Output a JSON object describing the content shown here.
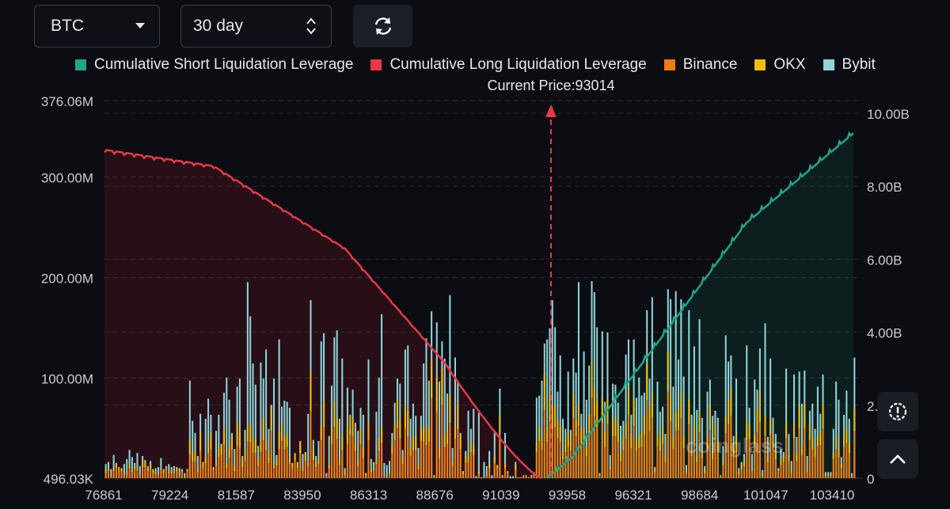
{
  "controls": {
    "coin": "BTC",
    "range": "30 day",
    "refresh_icon": "refresh-icon"
  },
  "legend": [
    {
      "label": "Cumulative Short Liquidation Leverage",
      "color": "#1fa58a"
    },
    {
      "label": "Cumulative Long Liquidation Leverage",
      "color": "#e8384a"
    },
    {
      "label": "Binance",
      "color": "#f07b0c"
    },
    {
      "label": "OKX",
      "color": "#f3bd0b"
    },
    {
      "label": "Bybit",
      "color": "#8ed4d8"
    }
  ],
  "current_price_label": "Current Price:93014",
  "watermark": "coinglass",
  "chart_data": {
    "type": "bar",
    "title": "",
    "current_price": 93014,
    "x_tick_labels": [
      "76861",
      "79224",
      "81587",
      "83950",
      "86313",
      "88676",
      "91039",
      "93958",
      "96321",
      "98684",
      "101047",
      "103410"
    ],
    "x_range": [
      76861,
      104650
    ],
    "left_axis": {
      "labels": [
        "376.06M",
        "300.00M",
        "200.00M",
        "100.00M",
        "496.03K"
      ],
      "values": [
        376.06,
        300,
        200,
        100,
        0.496
      ],
      "ylim": [
        0.496,
        376.06
      ],
      "unit": "M"
    },
    "right_axis": {
      "labels": [
        "10.00B",
        "8.00B",
        "6.00B",
        "4.00B",
        "2.00B",
        "0"
      ],
      "values": [
        10,
        8,
        6,
        4,
        2,
        0
      ],
      "ylim": [
        0,
        10
      ],
      "unit": "B"
    },
    "bar_series": [
      {
        "name": "Bybit",
        "values": [
          14,
          16,
          9,
          23,
          15,
          8,
          9,
          14,
          19,
          28,
          21,
          15,
          25,
          12,
          22,
          18,
          12,
          17,
          9,
          10,
          11,
          20,
          9,
          9,
          14,
          11,
          12,
          10,
          10,
          8,
          5,
          9,
          97,
          57,
          45,
          22,
          64,
          15,
          59,
          79,
          63,
          9,
          47,
          63,
          34,
          85,
          100,
          78,
          45,
          29,
          91,
          99,
          22,
          48,
          195,
          161,
          114,
          93,
          32,
          115,
          99,
          128,
          49,
          73,
          99,
          23,
          138,
          71,
          77,
          76,
          70,
          15,
          19,
          16,
          34,
          24,
          26,
          64,
          177,
          38,
          22,
          37,
          136,
          144,
          5,
          42,
          92,
          140,
          147,
          59,
          119,
          10,
          90,
          48,
          88,
          55,
          47,
          70,
          63,
          5,
          118,
          19,
          16,
          66,
          100,
          163,
          15,
          13,
          17,
          45,
          75,
          99,
          94,
          28,
          128,
          132,
          59,
          74,
          62,
          30,
          62,
          114,
          139,
          97,
          166,
          3,
          155,
          96,
          136,
          119,
          84,
          182,
          30,
          120,
          97,
          45,
          7,
          27,
          67,
          49,
          69,
          2,
          65,
          1,
          16,
          12,
          27,
          3,
          46,
          12,
          89,
          3,
          45,
          6,
          2,
          2,
          16,
          1,
          1,
          2,
          1,
          1,
          3,
          6,
          80,
          82,
          97,
          134,
          138,
          149,
          177,
          150,
          86,
          122,
          59,
          49,
          106,
          48,
          119,
          105,
          195,
          64,
          126,
          78,
          112,
          196,
          185,
          150,
          5,
          146,
          76,
          145,
          23,
          94,
          93,
          75,
          52,
          57,
          123,
          138,
          63,
          138,
          80,
          100,
          82,
          85,
          167,
          99,
          180,
          11,
          96,
          66,
          71,
          44,
          188,
          178,
          91,
          186,
          118,
          178,
          101,
          13,
          167,
          63,
          131,
          68,
          158,
          60,
          12,
          86,
          98,
          62,
          67,
          60,
          3,
          32,
          142,
          116,
          122,
          42,
          99,
          10,
          16,
          24,
          132,
          70,
          24,
          98,
          88,
          129,
          8,
          154,
          41,
          119,
          60,
          44,
          10,
          29,
          26,
          109,
          44,
          17,
          103,
          41,
          106,
          74,
          107,
          22,
          67,
          74,
          49,
          91,
          64,
          103,
          6,
          6,
          6,
          49,
          96,
          78,
          21,
          63,
          87,
          59,
          5,
          120
        ]
      },
      {
        "name": "OKX",
        "values": [
          3,
          3,
          1,
          3,
          4,
          3,
          3,
          1,
          2,
          3,
          2,
          3,
          3,
          1,
          6,
          5,
          3,
          5,
          3,
          2,
          1,
          2,
          2,
          4,
          1,
          2,
          3,
          4,
          1,
          3,
          1,
          2,
          15,
          10,
          9,
          3,
          18,
          6,
          6,
          10,
          16,
          3,
          7,
          10,
          11,
          17,
          4,
          12,
          13,
          5,
          23,
          15,
          6,
          9,
          15,
          17,
          15,
          13,
          7,
          11,
          22,
          11,
          9,
          25,
          3,
          7,
          16,
          18,
          14,
          11,
          6,
          5,
          7,
          5,
          12,
          3,
          7,
          4,
          39,
          10,
          5,
          6,
          14,
          25,
          0,
          3,
          14,
          25,
          20,
          5,
          14,
          1,
          16,
          20,
          17,
          10,
          6,
          16,
          11,
          2,
          16,
          2,
          3,
          5,
          13,
          16,
          0,
          0,
          2,
          9,
          14,
          27,
          18,
          7,
          23,
          25,
          9,
          13,
          14,
          3,
          14,
          16,
          15,
          14,
          37,
          1,
          34,
          10,
          36,
          11,
          14,
          27,
          5,
          13,
          25,
          14,
          2,
          7,
          6,
          11,
          8,
          0,
          2,
          0,
          0,
          1,
          3,
          0,
          6,
          3,
          20,
          0,
          5,
          2,
          0,
          0,
          4,
          0,
          0,
          1,
          1,
          0,
          1,
          1,
          10,
          15,
          13,
          36,
          14,
          28,
          22,
          23,
          18,
          16,
          6,
          12,
          15,
          13,
          24,
          17,
          20,
          15,
          14,
          9,
          20,
          36,
          29,
          23,
          1,
          26,
          15,
          24,
          2,
          16,
          19,
          18,
          8,
          12,
          15,
          28,
          12,
          27,
          10,
          13,
          14,
          18,
          37,
          24,
          25,
          3,
          12,
          12,
          17,
          6,
          40,
          26,
          12,
          18,
          21,
          26,
          12,
          2,
          25,
          6,
          16,
          5,
          19,
          6,
          3,
          11,
          24,
          6,
          17,
          11,
          0,
          5,
          16,
          24,
          27,
          10,
          14,
          2,
          4,
          5,
          18,
          15,
          2,
          12,
          22,
          29,
          1,
          19,
          6,
          16,
          12,
          8,
          2,
          5,
          7,
          16,
          6,
          2,
          16,
          8,
          23,
          9,
          24,
          2,
          16,
          11,
          9,
          10,
          14,
          25,
          1,
          1,
          1,
          6,
          13,
          7,
          4,
          13,
          16,
          10,
          1,
          22
        ]
      },
      {
        "name": "Binance",
        "values": [
          5,
          7,
          2,
          7,
          10,
          8,
          7,
          3,
          4,
          10,
          6,
          9,
          8,
          3,
          11,
          11,
          7,
          9,
          5,
          4,
          3,
          8,
          5,
          8,
          5,
          5,
          5,
          7,
          2,
          6,
          1,
          7,
          24,
          17,
          16,
          6,
          27,
          10,
          15,
          25,
          29,
          8,
          12,
          21,
          23,
          33,
          10,
          20,
          28,
          7,
          32,
          30,
          11,
          17,
          37,
          36,
          25,
          25,
          12,
          26,
          38,
          28,
          15,
          47,
          10,
          13,
          29,
          37,
          29,
          31,
          14,
          10,
          18,
          10,
          25,
          7,
          17,
          12,
          67,
          18,
          11,
          14,
          38,
          51,
          2,
          10,
          34,
          51,
          39,
          13,
          28,
          3,
          34,
          43,
          42,
          27,
          12,
          34,
          20,
          3,
          38,
          6,
          7,
          14,
          27,
          35,
          2,
          1,
          4,
          24,
          38,
          50,
          40,
          14,
          50,
          41,
          22,
          28,
          28,
          9,
          37,
          36,
          33,
          36,
          80,
          1,
          66,
          20,
          73,
          31,
          34,
          55,
          12,
          39,
          49,
          29,
          4,
          15,
          16,
          26,
          23,
          0,
          4,
          0,
          1,
          2,
          10,
          0,
          15,
          10,
          44,
          1,
          10,
          5,
          0,
          0,
          8,
          1,
          1,
          2,
          2,
          1,
          2,
          3,
          26,
          37,
          28,
          68,
          36,
          56,
          49,
          51,
          40,
          36,
          19,
          26,
          31,
          27,
          60,
          42,
          52,
          35,
          34,
          22,
          43,
          80,
          61,
          52,
          2,
          55,
          31,
          54,
          9,
          42,
          42,
          36,
          17,
          28,
          39,
          63,
          30,
          52,
          27,
          30,
          31,
          43,
          78,
          47,
          60,
          6,
          32,
          27,
          34,
          16,
          86,
          57,
          29,
          47,
          48,
          60,
          30,
          5,
          54,
          22,
          36,
          16,
          46,
          20,
          5,
          29,
          48,
          19,
          38,
          26,
          2,
          13,
          45,
          54,
          62,
          24,
          28,
          4,
          9,
          12,
          38,
          39,
          7,
          32,
          46,
          56,
          2,
          42,
          16,
          43,
          30,
          19,
          7,
          13,
          16,
          40,
          17,
          5,
          40,
          17,
          50,
          23,
          50,
          6,
          38,
          29,
          21,
          32,
          33,
          49,
          2,
          2,
          2,
          19,
          29,
          21,
          10,
          31,
          35,
          25,
          1,
          47
        ]
      }
    ],
    "line_series": [
      {
        "name": "Cumulative Long Liquidation Leverage",
        "side": "below current price",
        "start_value_b": 9.0,
        "end_value_b": 0
      },
      {
        "name": "Cumulative Short Liquidation Leverage",
        "side": "above current price",
        "start_value_b": 0,
        "end_value_b": 9.45
      }
    ]
  }
}
